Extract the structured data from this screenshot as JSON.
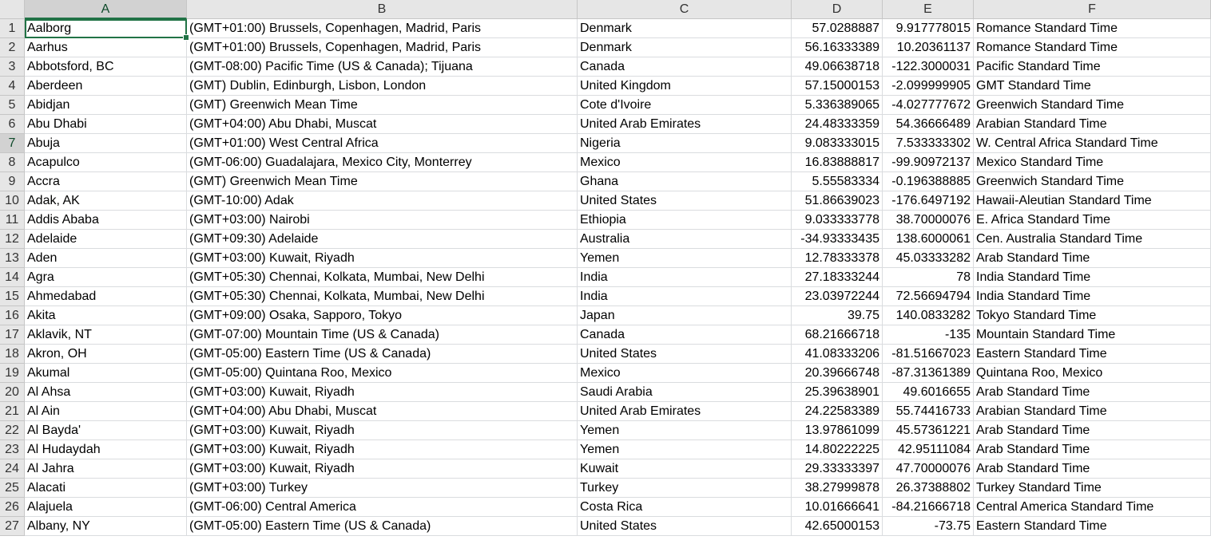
{
  "columns": [
    "A",
    "B",
    "C",
    "D",
    "E",
    "F"
  ],
  "active_cell": {
    "row": 1,
    "column": "A"
  },
  "highlighted_row": 7,
  "colors": {
    "header_bg": "#e6e6e6",
    "selection": "#217346",
    "gridline": "#dadcdf"
  },
  "rows": [
    {
      "n": "1",
      "a": "Aalborg",
      "b": "(GMT+01:00) Brussels, Copenhagen, Madrid, Paris",
      "c": "Denmark",
      "d": "57.0288887",
      "e": "9.917778015",
      "f": "Romance Standard Time"
    },
    {
      "n": "2",
      "a": "Aarhus",
      "b": "(GMT+01:00) Brussels, Copenhagen, Madrid, Paris",
      "c": "Denmark",
      "d": "56.16333389",
      "e": "10.20361137",
      "f": "Romance Standard Time"
    },
    {
      "n": "3",
      "a": "Abbotsford, BC",
      "b": "(GMT-08:00) Pacific Time (US & Canada); Tijuana",
      "c": "Canada",
      "d": "49.06638718",
      "e": "-122.3000031",
      "f": "Pacific Standard Time"
    },
    {
      "n": "4",
      "a": "Aberdeen",
      "b": "(GMT) Dublin, Edinburgh, Lisbon, London",
      "c": "United Kingdom",
      "d": "57.15000153",
      "e": "-2.099999905",
      "f": "GMT Standard Time"
    },
    {
      "n": "5",
      "a": "Abidjan",
      "b": "(GMT) Greenwich Mean Time",
      "c": "Cote d'Ivoire",
      "d": "5.336389065",
      "e": "-4.027777672",
      "f": "Greenwich Standard Time"
    },
    {
      "n": "6",
      "a": "Abu Dhabi",
      "b": "(GMT+04:00) Abu Dhabi, Muscat",
      "c": "United Arab Emirates",
      "d": "24.48333359",
      "e": "54.36666489",
      "f": "Arabian Standard Time"
    },
    {
      "n": "7",
      "a": "Abuja",
      "b": "(GMT+01:00) West Central Africa",
      "c": "Nigeria",
      "d": "9.083333015",
      "e": "7.533333302",
      "f": "W. Central Africa Standard Time"
    },
    {
      "n": "8",
      "a": "Acapulco",
      "b": "(GMT-06:00) Guadalajara, Mexico City, Monterrey",
      "c": "Mexico",
      "d": "16.83888817",
      "e": "-99.90972137",
      "f": "Mexico Standard Time"
    },
    {
      "n": "9",
      "a": "Accra",
      "b": "(GMT) Greenwich Mean Time",
      "c": "Ghana",
      "d": "5.55583334",
      "e": "-0.196388885",
      "f": "Greenwich Standard Time"
    },
    {
      "n": "10",
      "a": "Adak, AK",
      "b": "(GMT-10:00) Adak",
      "c": "United States",
      "d": "51.86639023",
      "e": "-176.6497192",
      "f": "Hawaii-Aleutian Standard Time"
    },
    {
      "n": "11",
      "a": "Addis Ababa",
      "b": "(GMT+03:00) Nairobi",
      "c": "Ethiopia",
      "d": "9.033333778",
      "e": "38.70000076",
      "f": "E. Africa Standard Time"
    },
    {
      "n": "12",
      "a": "Adelaide",
      "b": "(GMT+09:30) Adelaide",
      "c": "Australia",
      "d": "-34.93333435",
      "e": "138.6000061",
      "f": "Cen. Australia Standard Time"
    },
    {
      "n": "13",
      "a": "Aden",
      "b": "(GMT+03:00) Kuwait, Riyadh",
      "c": "Yemen",
      "d": "12.78333378",
      "e": "45.03333282",
      "f": "Arab Standard Time"
    },
    {
      "n": "14",
      "a": "Agra",
      "b": "(GMT+05:30) Chennai, Kolkata, Mumbai, New Delhi",
      "c": "India",
      "d": "27.18333244",
      "e": "78",
      "f": "India Standard Time"
    },
    {
      "n": "15",
      "a": "Ahmedabad",
      "b": "(GMT+05:30) Chennai, Kolkata, Mumbai, New Delhi",
      "c": "India",
      "d": "23.03972244",
      "e": "72.56694794",
      "f": "India Standard Time"
    },
    {
      "n": "16",
      "a": "Akita",
      "b": "(GMT+09:00) Osaka, Sapporo, Tokyo",
      "c": "Japan",
      "d": "39.75",
      "e": "140.0833282",
      "f": "Tokyo Standard Time"
    },
    {
      "n": "17",
      "a": "Aklavik, NT",
      "b": "(GMT-07:00) Mountain Time (US & Canada)",
      "c": "Canada",
      "d": "68.21666718",
      "e": "-135",
      "f": "Mountain Standard Time"
    },
    {
      "n": "18",
      "a": "Akron, OH",
      "b": "(GMT-05:00) Eastern Time (US & Canada)",
      "c": "United States",
      "d": "41.08333206",
      "e": "-81.51667023",
      "f": "Eastern Standard Time"
    },
    {
      "n": "19",
      "a": "Akumal",
      "b": "(GMT-05:00) Quintana Roo, Mexico",
      "c": "Mexico",
      "d": "20.39666748",
      "e": "-87.31361389",
      "f": "Quintana Roo, Mexico"
    },
    {
      "n": "20",
      "a": "Al Ahsa",
      "b": "(GMT+03:00) Kuwait, Riyadh",
      "c": "Saudi Arabia",
      "d": "25.39638901",
      "e": "49.6016655",
      "f": "Arab Standard Time"
    },
    {
      "n": "21",
      "a": "Al Ain",
      "b": "(GMT+04:00) Abu Dhabi, Muscat",
      "c": "United Arab Emirates",
      "d": "24.22583389",
      "e": "55.74416733",
      "f": "Arabian Standard Time"
    },
    {
      "n": "22",
      "a": "Al Bayda'",
      "b": "(GMT+03:00) Kuwait, Riyadh",
      "c": "Yemen",
      "d": "13.97861099",
      "e": "45.57361221",
      "f": "Arab Standard Time"
    },
    {
      "n": "23",
      "a": "Al Hudaydah",
      "b": "(GMT+03:00) Kuwait, Riyadh",
      "c": "Yemen",
      "d": "14.80222225",
      "e": "42.95111084",
      "f": "Arab Standard Time"
    },
    {
      "n": "24",
      "a": "Al Jahra",
      "b": "(GMT+03:00) Kuwait, Riyadh",
      "c": "Kuwait",
      "d": "29.33333397",
      "e": "47.70000076",
      "f": "Arab Standard Time"
    },
    {
      "n": "25",
      "a": "Alacati",
      "b": "(GMT+03:00) Turkey",
      "c": "Turkey",
      "d": "38.27999878",
      "e": "26.37388802",
      "f": "Turkey Standard Time"
    },
    {
      "n": "26",
      "a": "Alajuela",
      "b": "(GMT-06:00) Central America",
      "c": "Costa Rica",
      "d": "10.01666641",
      "e": "-84.21666718",
      "f": "Central America Standard Time"
    },
    {
      "n": "27",
      "a": "Albany, NY",
      "b": "(GMT-05:00) Eastern Time (US & Canada)",
      "c": "United States",
      "d": "42.65000153",
      "e": "-73.75",
      "f": "Eastern Standard Time"
    }
  ]
}
